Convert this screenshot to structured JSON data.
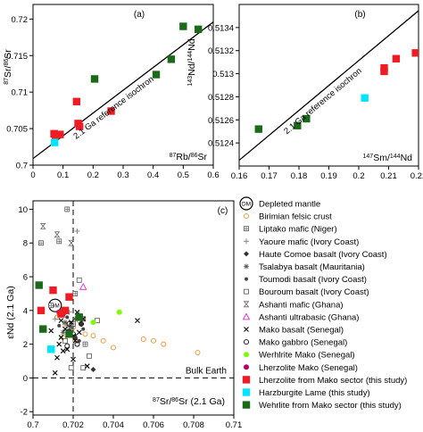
{
  "chart_data": [
    {
      "type": "scatter",
      "panel_label": "(a)",
      "xlabel_parts": [
        "87",
        "Rb/",
        "86",
        "Sr"
      ],
      "ylabel_parts": [
        "87",
        "Sr/",
        "86",
        "Sr"
      ],
      "xlim": [
        0,
        0.6
      ],
      "ylim": [
        0.7,
        0.722
      ],
      "xticks": [
        "0",
        "0.1",
        "0.2",
        "0.3",
        "0.4",
        "0.5",
        "0.6"
      ],
      "yticks": [
        "0.7",
        "0.705",
        "0.71",
        "0.715",
        "0.72"
      ],
      "reference_line": {
        "label": "2.1 Ga reference isochron",
        "x": [
          0,
          0.6
        ],
        "y": [
          0.7009,
          0.7196
        ]
      },
      "series": [
        {
          "name": "Lherzolite from Mako sector (this study)",
          "color": "#ee1c24",
          "marker": "square",
          "points": [
            [
              0.07,
              0.7043
            ],
            [
              0.075,
              0.7041
            ],
            [
              0.09,
              0.7042
            ],
            [
              0.145,
              0.7087
            ],
            [
              0.15,
              0.7057
            ],
            [
              0.155,
              0.7053
            ],
            [
              0.26,
              0.7074
            ]
          ]
        },
        {
          "name": "Harzburgite Lame (this study)",
          "color": "#00e5ff",
          "marker": "square",
          "points": [
            [
              0.072,
              0.7031
            ]
          ]
        },
        {
          "name": "Wehrlite from Mako sector (this study)",
          "color": "#1a6a1a",
          "marker": "square",
          "points": [
            [
              0.205,
              0.7118
            ],
            [
              0.41,
              0.7124
            ],
            [
              0.46,
              0.7145
            ],
            [
              0.5,
              0.719
            ],
            [
              0.55,
              0.7186
            ]
          ]
        }
      ]
    },
    {
      "type": "scatter",
      "panel_label": "(b)",
      "xlabel_parts": [
        "147",
        "Sm/",
        "144",
        "Nd"
      ],
      "ylabel_parts": [
        "143",
        "Nd/",
        "144",
        "Nd"
      ],
      "xlim": [
        0.16,
        0.22
      ],
      "ylim": [
        0.5122,
        0.5136
      ],
      "xticks": [
        "0.16",
        "0.17",
        "0.18",
        "0.19",
        "0.2",
        "0.21",
        "0.22"
      ],
      "yticks": [
        "0.5124",
        "0.5126",
        "0.5128",
        "0.513",
        "0.5132",
        "0.5134"
      ],
      "reference_line": {
        "label": "2.1 Ga reference isochron",
        "x": [
          0.16,
          0.2225
        ],
        "y": [
          0.51225,
          0.5136
        ]
      },
      "series": [
        {
          "name": "Lherzolite from Mako sector (this study)",
          "color": "#ee1c24",
          "marker": "square",
          "points": [
            [
              0.2085,
              0.51302
            ],
            [
              0.2085,
              0.51305
            ],
            [
              0.2125,
              0.51313
            ],
            [
              0.219,
              0.51318
            ]
          ]
        },
        {
          "name": "Harzburgite Lame (this study)",
          "color": "#00e5ff",
          "marker": "square",
          "points": [
            [
              0.202,
              0.51279
            ]
          ]
        },
        {
          "name": "Wehrlite from Mako sector (this study)",
          "color": "#1a6a1a",
          "marker": "square",
          "points": [
            [
              0.1665,
              0.51252
            ],
            [
              0.1795,
              0.51255
            ],
            [
              0.1825,
              0.51261
            ]
          ]
        }
      ]
    },
    {
      "type": "scatter",
      "panel_label": "(c)",
      "xlabel_parts": [
        "87",
        "Sr/",
        "86",
        "Sr (2.1 Ga)"
      ],
      "ylabel": "εNd (2.1 Ga)",
      "xlim": [
        0.7,
        0.71
      ],
      "ylim": [
        -2.2,
        10.5
      ],
      "xticks": [
        "0.7",
        "0.702",
        "0.704",
        "0.706",
        "0.708",
        "0.71"
      ],
      "yticks": [
        "-2",
        "0",
        "2",
        "4",
        "6",
        "8",
        "10"
      ],
      "bulk_earth_label": "Bulk Earth",
      "dm_marker_label": "DM",
      "ref_vline_x": 0.702,
      "ref_hline_y": 0,
      "legend": [
        {
          "label": "Depleted mantle",
          "marker": "dm",
          "color": "#000000"
        },
        {
          "label": "Birimian felsic crust",
          "marker": "circle-open",
          "color": "#f28e2b"
        },
        {
          "label": "Liptako mafic (Niger)",
          "marker": "square-grid",
          "color": "#555555"
        },
        {
          "label": "Yaoure mafic (Ivory Coast)",
          "marker": "plus",
          "color": "#888888"
        },
        {
          "label": "Haute Comoe basalt (Ivory Coast)",
          "marker": "diamond",
          "color": "#333333"
        },
        {
          "label": "Tsalabya basalt (Mauritania)",
          "marker": "asterisk",
          "color": "#555555"
        },
        {
          "label": "Toumodi basalt (Ivory Coast)",
          "marker": "dot",
          "color": "#444444"
        },
        {
          "label": "Bouroum basalt (Ivory Coast)",
          "marker": "square-open",
          "color": "#666666"
        },
        {
          "label": "Ashanti mafic (Ghana)",
          "marker": "hourglass",
          "color": "#666666"
        },
        {
          "label": "Ashanti ultrabasic (Ghana)",
          "marker": "triangle-open",
          "color": "#e040d0"
        },
        {
          "label": "Mako basalt (Senegal)",
          "marker": "cross",
          "color": "#000000"
        },
        {
          "label": "Mako gabbro (Senegal)",
          "marker": "circle-open",
          "color": "#000000"
        },
        {
          "label": "Werhlrite Mako (Senegal)",
          "marker": "circle",
          "color": "#7cfc00"
        },
        {
          "label": "Lherzolite Mako (Senegal)",
          "marker": "circle",
          "color": "#b5006b"
        },
        {
          "label": "Lherzolite from Mako sector (this study)",
          "marker": "square",
          "color": "#ee1c24"
        },
        {
          "label": "Harzburgite Lame (this study)",
          "marker": "square",
          "color": "#00e5ff"
        },
        {
          "label": "Wehrlite from Mako sector (this study)",
          "marker": "square",
          "color": "#1a6a1a"
        }
      ],
      "depleted_mantle": [
        [
          0.7011,
          4.3
        ]
      ],
      "series": [
        {
          "name": "Birimian felsic crust",
          "marker": "circle-open",
          "color": "#f28e2b",
          "points": [
            [
              0.7013,
              3.8
            ],
            [
              0.7016,
              3.2
            ],
            [
              0.702,
              3.0
            ],
            [
              0.7023,
              3.4
            ],
            [
              0.7026,
              2.6
            ],
            [
              0.703,
              2.5
            ],
            [
              0.7035,
              2.2
            ],
            [
              0.704,
              1.8
            ],
            [
              0.7055,
              2.3
            ],
            [
              0.706,
              2.2
            ],
            [
              0.7065,
              2.0
            ],
            [
              0.7082,
              1.5
            ],
            [
              0.7015,
              2.4
            ],
            [
              0.7018,
              2.8
            ],
            [
              0.7012,
              3.6
            ],
            [
              0.7021,
              2.2
            ]
          ]
        },
        {
          "name": "Liptako mafic (Niger)",
          "marker": "square-grid",
          "color": "#555555",
          "points": [
            [
              0.7017,
              10.0
            ],
            [
              0.7013,
              8.1
            ],
            [
              0.7004,
              8.0
            ],
            [
              0.7021,
              5.0
            ],
            [
              0.7025,
              3.5
            ],
            [
              0.7015,
              4.0
            ],
            [
              0.702,
              3.2
            ],
            [
              0.7009,
              4.3
            ],
            [
              0.7026,
              2.0
            ],
            [
              0.7018,
              3.0
            ]
          ]
        },
        {
          "name": "Yaoure mafic (Ivory Coast)",
          "marker": "plus",
          "color": "#888888",
          "points": [
            [
              0.7022,
              8.7
            ],
            [
              0.7014,
              3.7
            ],
            [
              0.7018,
              3.9
            ],
            [
              0.7011,
              3.5
            ],
            [
              0.7016,
              3.2
            ],
            [
              0.7023,
              3.8
            ]
          ]
        },
        {
          "name": "Haute Comoe basalt (Ivory Coast)",
          "marker": "diamond",
          "color": "#333333",
          "points": [
            [
              0.7018,
              2.8
            ],
            [
              0.7024,
              3.2
            ],
            [
              0.703,
              0.5
            ],
            [
              0.7021,
              2.4
            ]
          ]
        },
        {
          "name": "Tsalabya basalt (Mauritania)",
          "marker": "asterisk",
          "color": "#555555",
          "points": [
            [
              0.7016,
              3.3
            ],
            [
              0.7019,
              3.0
            ],
            [
              0.7015,
              2.7
            ],
            [
              0.7021,
              3.5
            ]
          ]
        },
        {
          "name": "Toumodi basalt (Ivory Coast)",
          "marker": "dot",
          "color": "#444444",
          "points": [
            [
              0.7021,
              2.5
            ],
            [
              0.7017,
              3.6
            ],
            [
              0.7023,
              2.2
            ],
            [
              0.7013,
              3.1
            ],
            [
              0.7025,
              2.9
            ]
          ]
        },
        {
          "name": "Bouroum basalt (Ivory Coast)",
          "marker": "square-open",
          "color": "#666666",
          "points": [
            [
              0.7023,
              5.8
            ],
            [
              0.7032,
              3.4
            ],
            [
              0.7028,
              1.3
            ],
            [
              0.7019,
              0.6
            ],
            [
              0.7016,
              2.2
            ],
            [
              0.7025,
              0.6
            ]
          ]
        },
        {
          "name": "Ashanti mafic (Ghana)",
          "marker": "hourglass",
          "color": "#666666",
          "points": [
            [
              0.7005,
              9.0
            ],
            [
              0.7012,
              8.5
            ],
            [
              0.7019,
              8.0
            ]
          ]
        },
        {
          "name": "Ashanti ultrabasic (Ghana)",
          "marker": "triangle-open",
          "color": "#e040d0",
          "points": [
            [
              0.7025,
              5.4
            ]
          ]
        },
        {
          "name": "Mako basalt (Senegal)",
          "marker": "cross",
          "color": "#000000",
          "points": [
            [
              0.7014,
              3.4
            ],
            [
              0.7016,
              2.9
            ],
            [
              0.7018,
              2.6
            ],
            [
              0.7013,
              2.0
            ],
            [
              0.7021,
              2.2
            ],
            [
              0.7012,
              1.2
            ],
            [
              0.7017,
              1.7
            ],
            [
              0.702,
              1.1
            ],
            [
              0.7023,
              2.7
            ],
            [
              0.7025,
              3.5
            ],
            [
              0.7019,
              3.3
            ],
            [
              0.7015,
              1.6
            ],
            [
              0.7052,
              3.4
            ],
            [
              0.7027,
              0.7
            ],
            [
              0.7009,
              2.8
            ],
            [
              0.7022,
              3.9
            ],
            [
              0.7014,
              2.4
            ],
            [
              0.7011,
              0.3
            ]
          ]
        },
        {
          "name": "Mako gabbro (Senegal)",
          "marker": "circle-open",
          "color": "#000000",
          "points": [
            [
              0.7015,
              3.8
            ],
            [
              0.7018,
              3.2
            ],
            [
              0.702,
              2.6
            ],
            [
              0.7022,
              2.0
            ],
            [
              0.7017,
              1.9
            ],
            [
              0.7024,
              3.2
            ]
          ]
        },
        {
          "name": "Werhlrite Mako (Senegal)",
          "marker": "circle",
          "color": "#7cfc00",
          "points": [
            [
              0.7043,
              3.9
            ],
            [
              0.703,
              3.3
            ]
          ]
        },
        {
          "name": "Lherzolite Mako (Senegal)",
          "marker": "circle",
          "color": "#b5006b",
          "points": [
            [
              0.7013,
              3.9
            ]
          ]
        },
        {
          "name": "Lherzolite from Mako sector (this study)",
          "marker": "square",
          "color": "#ee1c24",
          "points": [
            [
              0.701,
              5.2
            ],
            [
              0.7018,
              4.8
            ],
            [
              0.7004,
              4.0
            ],
            [
              0.7016,
              4.0
            ],
            [
              0.7014,
              3.8
            ]
          ]
        },
        {
          "name": "Harzburgite Lame (this study)",
          "marker": "square",
          "color": "#00e5ff",
          "points": [
            [
              0.7009,
              1.7
            ]
          ]
        },
        {
          "name": "Wehrlite from Mako sector (this study)",
          "marker": "square",
          "color": "#1a6a1a",
          "points": [
            [
              0.7003,
              5.5
            ],
            [
              0.7023,
              3.6
            ],
            [
              0.7005,
              2.9
            ],
            [
              0.7018,
              2.6
            ]
          ]
        }
      ]
    }
  ]
}
